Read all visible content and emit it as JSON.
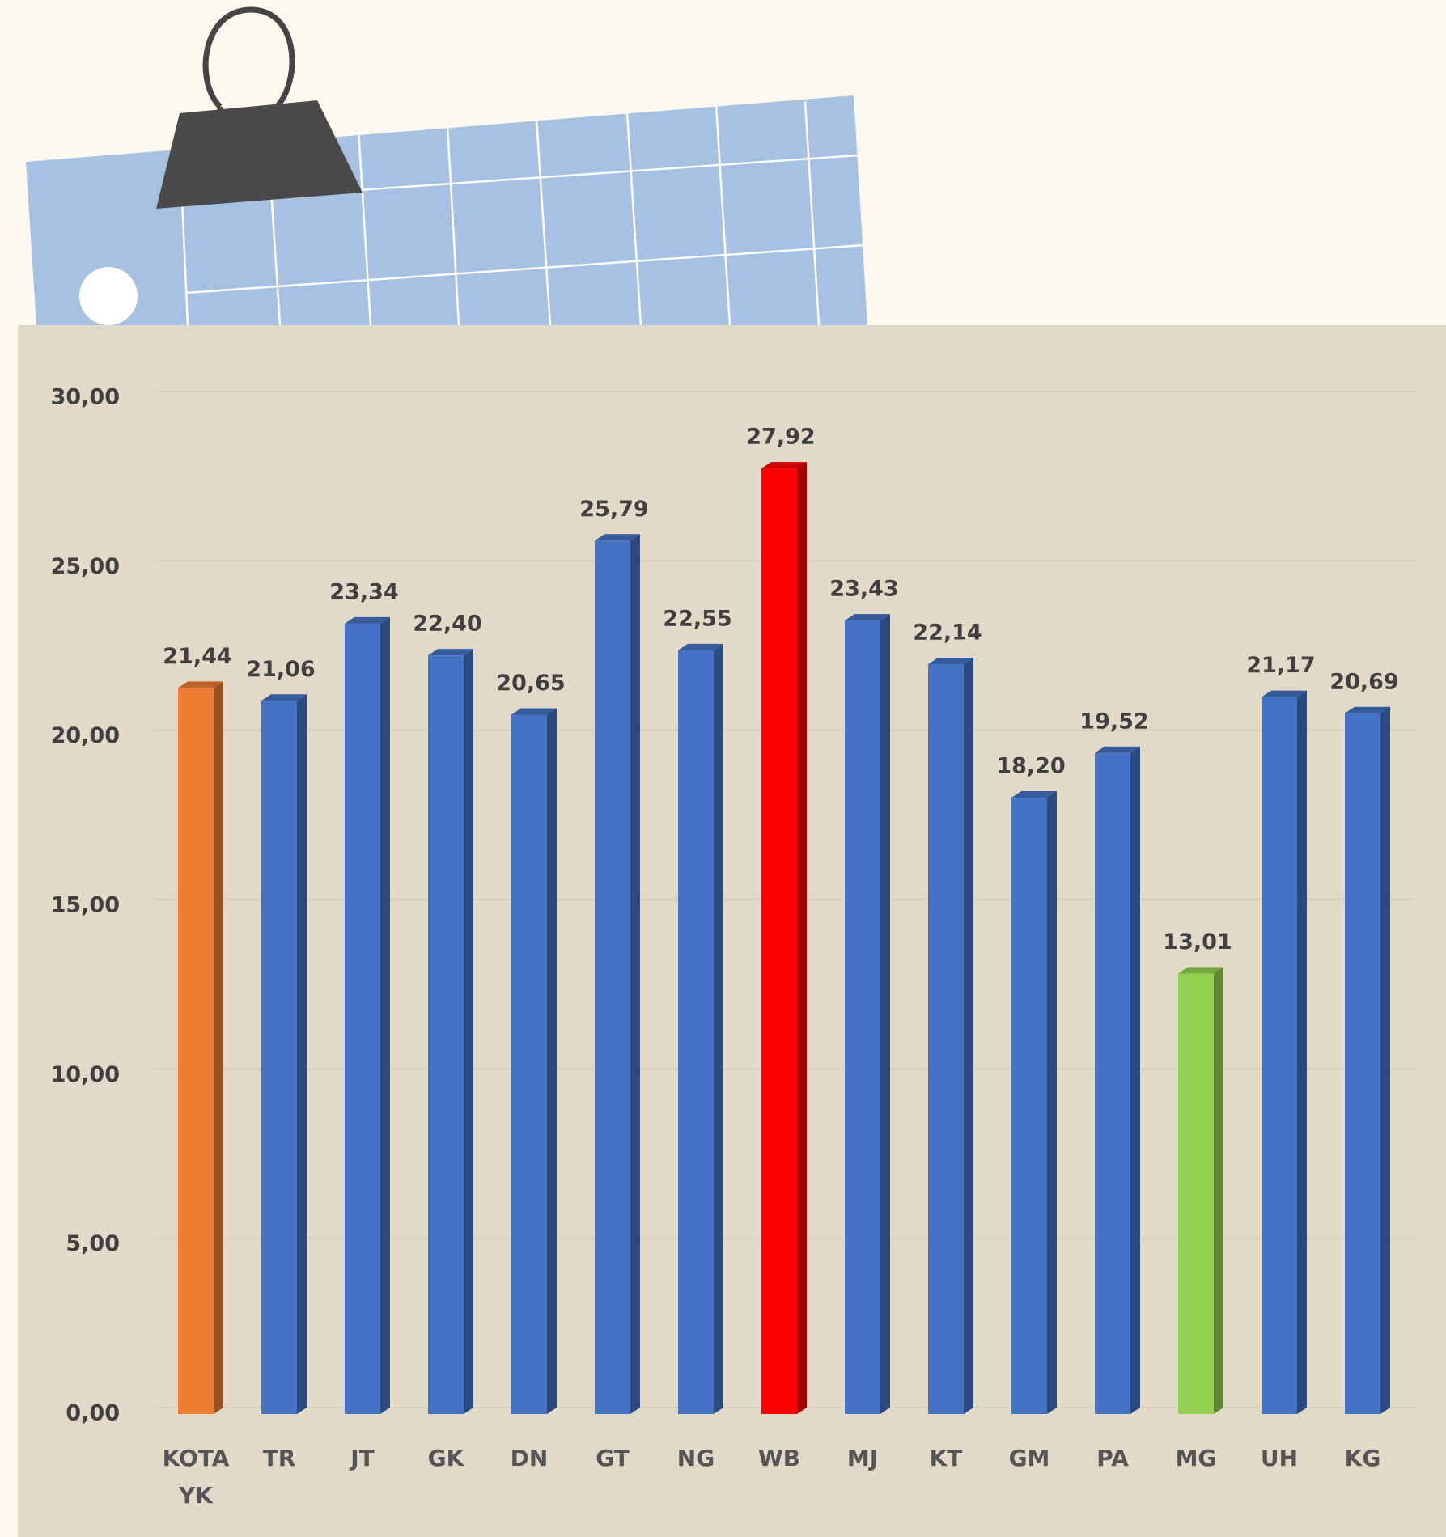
{
  "chart_data": {
    "type": "bar",
    "categories": [
      "KOTA YK",
      "TR",
      "JT",
      "GK",
      "DN",
      "GT",
      "NG",
      "WB",
      "MJ",
      "KT",
      "GM",
      "PA",
      "MG",
      "UH",
      "KG"
    ],
    "values": [
      21.44,
      21.06,
      23.34,
      22.4,
      20.65,
      25.79,
      22.55,
      27.92,
      23.43,
      22.14,
      18.2,
      19.52,
      13.01,
      21.17,
      20.69
    ],
    "value_labels": [
      "21,44",
      "21,06",
      "23,34",
      "22,40",
      "20,65",
      "25,79",
      "22,55",
      "27,92",
      "23,43",
      "22,14",
      "18,20",
      "19,52",
      "13,01",
      "21,17",
      "20,69"
    ],
    "colors": [
      "#ed7d31",
      "#4472c4",
      "#4472c4",
      "#4472c4",
      "#4472c4",
      "#4472c4",
      "#4472c4",
      "#ff0000",
      "#4472c4",
      "#4472c4",
      "#4472c4",
      "#4472c4",
      "#92d050",
      "#4472c4",
      "#4472c4"
    ],
    "ylim": [
      0,
      30
    ],
    "yticks": [
      {
        "value": 0,
        "label": "0,00"
      },
      {
        "value": 5,
        "label": "5,00"
      },
      {
        "value": 10,
        "label": "10,00"
      },
      {
        "value": 15,
        "label": "15,00"
      },
      {
        "value": 20,
        "label": "20,00"
      },
      {
        "value": 25,
        "label": "25,00"
      },
      {
        "value": 30,
        "label": "30,00"
      }
    ],
    "grid": true
  }
}
